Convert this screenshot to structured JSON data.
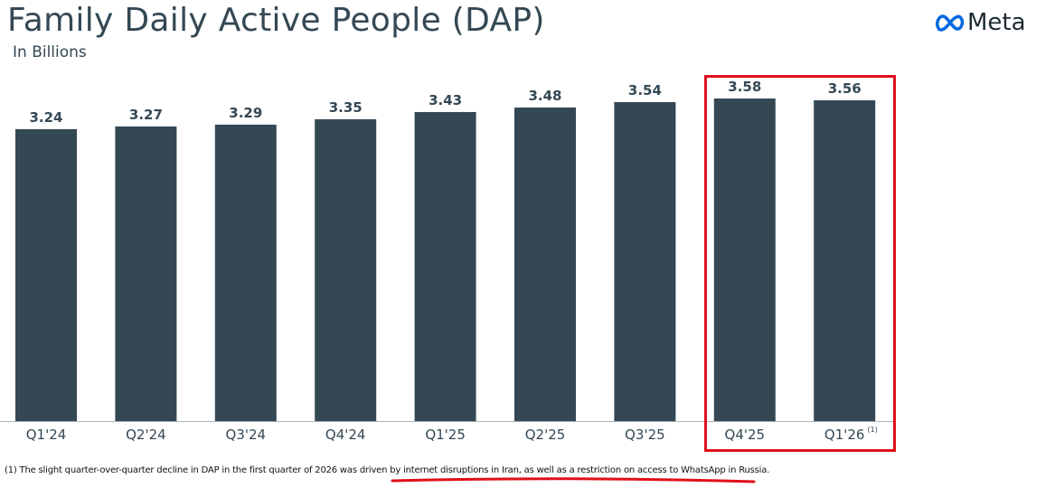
{
  "header": {
    "title": "Family Daily Active People (DAP)",
    "subtitle": "In Billions",
    "logo_text": "Meta"
  },
  "chart_data": {
    "type": "bar",
    "title": "Family Daily Active People (DAP)",
    "ylabel": "In Billions",
    "categories": [
      "Q1'24",
      "Q2'24",
      "Q3'24",
      "Q4'24",
      "Q1'25",
      "Q2'25",
      "Q3'25",
      "Q4'25",
      "Q1'26"
    ],
    "values": [
      3.24,
      3.27,
      3.29,
      3.35,
      3.43,
      3.48,
      3.54,
      3.58,
      3.56
    ],
    "value_labels": [
      "3.24",
      "3.27",
      "3.29",
      "3.35",
      "3.43",
      "3.48",
      "3.54",
      "3.58",
      "3.56"
    ],
    "ylim": [
      0,
      3.58
    ],
    "grid": false,
    "footnote_marker": "(1)",
    "bar_color": "#344854"
  },
  "footnote": {
    "text_before": "(1) The slight quarter-over-quarter decline in DAP in the first quarter of 2026 was driven ",
    "text_highlight": "by internet disruptions in Iran, as well as a restriction on access to WhatsApp in Russia."
  },
  "colors": {
    "bar": "#344854",
    "highlight": "#e0101a",
    "logo_blue": "#0668e1"
  }
}
